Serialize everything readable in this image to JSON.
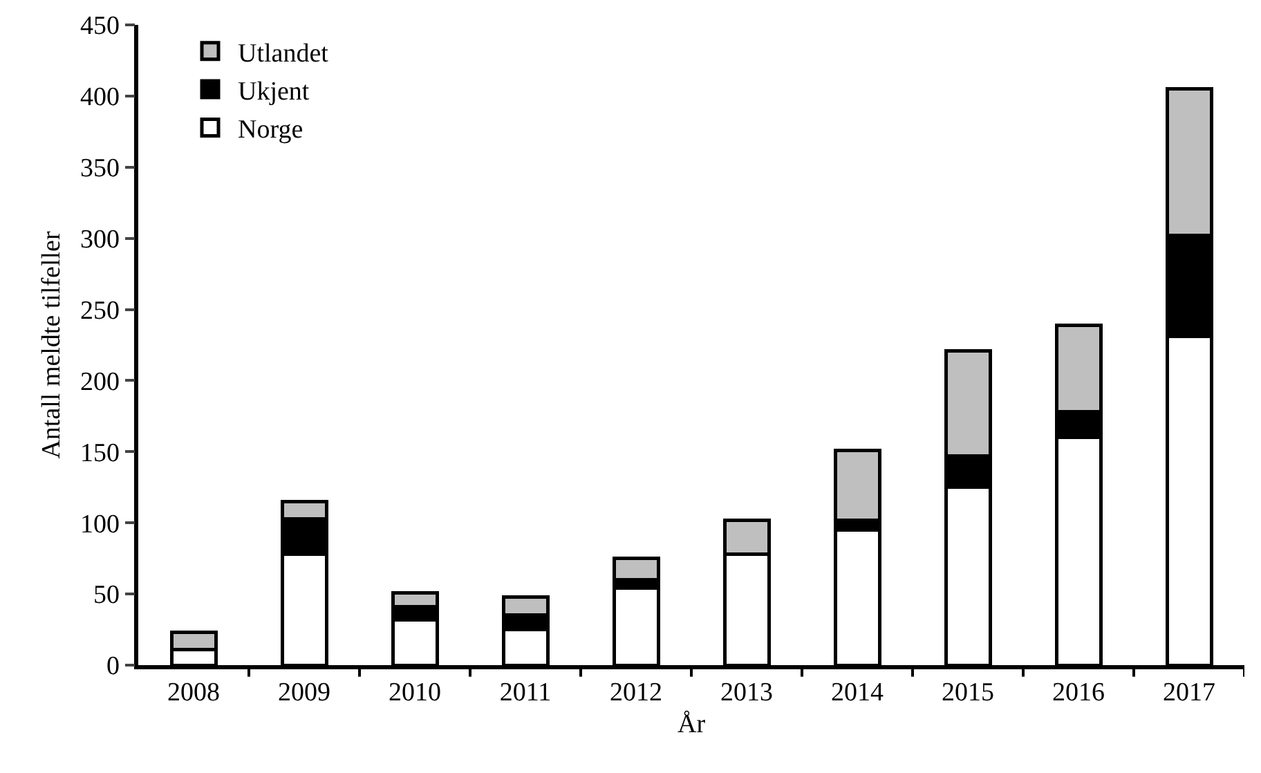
{
  "chart_data": {
    "type": "bar",
    "stacked": true,
    "xlabel": "År",
    "ylabel": "Antall meldte tilfeller",
    "categories": [
      "2008",
      "2009",
      "2010",
      "2011",
      "2012",
      "2013",
      "2014",
      "2015",
      "2016",
      "2017"
    ],
    "series": [
      {
        "name": "Norge",
        "color": "#ffffff",
        "values": [
          11,
          78,
          32,
          25,
          54,
          78,
          95,
          125,
          160,
          231
        ]
      },
      {
        "name": "Ukjent",
        "color": "#000000",
        "values": [
          0,
          25,
          9,
          10,
          6,
          0,
          7,
          22,
          18,
          71
        ]
      },
      {
        "name": "Utlandet",
        "color": "#bfbfbf",
        "values": [
          12,
          12,
          10,
          13,
          15,
          24,
          49,
          74,
          61,
          103
        ]
      }
    ],
    "ylim": [
      0,
      450
    ],
    "yticks": [
      0,
      50,
      100,
      150,
      200,
      250,
      300,
      350,
      400,
      450
    ],
    "grid": false,
    "legend": "top left"
  }
}
